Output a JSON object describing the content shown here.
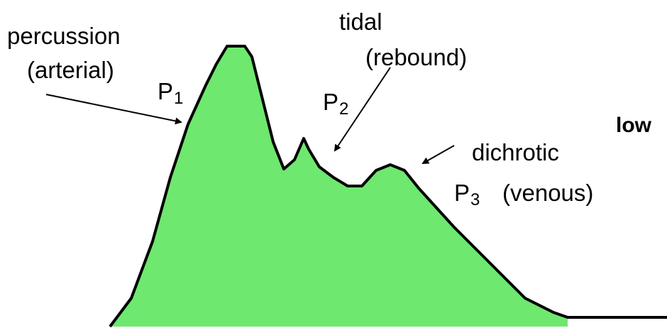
{
  "labels": {
    "percussion": "percussion",
    "arterial": "(arterial)",
    "p1_letter": "P",
    "p1_sub": "1",
    "tidal": "tidal",
    "rebound": "(rebound)",
    "p2_letter": "P",
    "p2_sub": "2",
    "dichrotic": "dichrotic",
    "p3_letter": "P",
    "p3_sub": "3",
    "venous": "(venous)",
    "low": "low"
  }
}
